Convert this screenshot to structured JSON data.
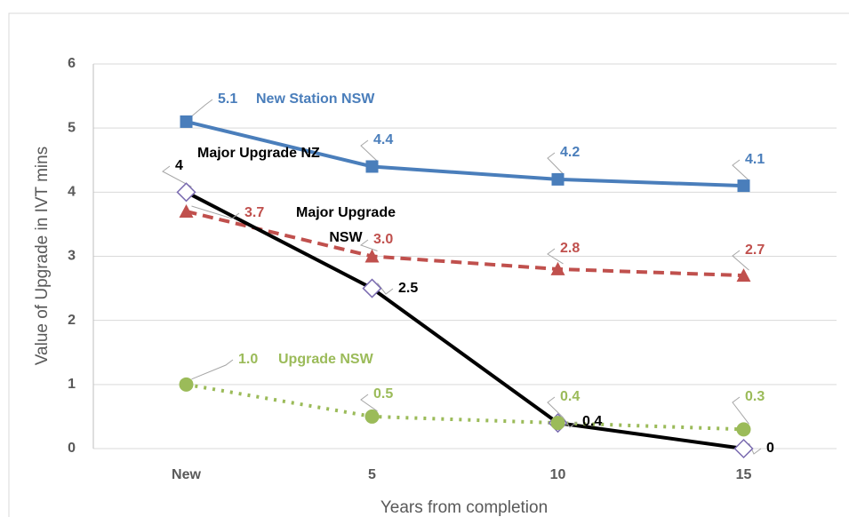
{
  "chart_data": {
    "type": "line",
    "xlabel": "Years from completion",
    "ylabel": "Value of Upgrade in IVT mins",
    "categories": [
      "New",
      "5",
      "10",
      "15"
    ],
    "ylim": [
      0,
      6
    ],
    "yticks": [
      0,
      1,
      2,
      3,
      4,
      5,
      6
    ],
    "grid": true,
    "series": [
      {
        "name": "New Station NSW",
        "color": "#4a7ebb",
        "marker": "square",
        "dash": "solid",
        "values": [
          5.1,
          4.4,
          4.2,
          4.1
        ]
      },
      {
        "name": "Major Upgrade NSW",
        "color": "#c0504d",
        "marker": "triangle",
        "dash": "dashed",
        "values": [
          3.7,
          3.0,
          2.8,
          2.7
        ],
        "value_labels": [
          "3.7",
          "3.0",
          "2.8",
          "2.7"
        ]
      },
      {
        "name": "Major Upgrade NZ",
        "color": "#000000",
        "marker": "diamond",
        "dash": "solid",
        "values": [
          4,
          2.5,
          0.4,
          0
        ]
      },
      {
        "name": "Upgrade NSW",
        "color": "#9bbb59",
        "marker": "circle",
        "dash": "dotted",
        "values": [
          1.0,
          0.5,
          0.4,
          0.3
        ],
        "value_labels": [
          "1.0",
          "0.5",
          "0.4",
          "0.3"
        ]
      }
    ]
  }
}
